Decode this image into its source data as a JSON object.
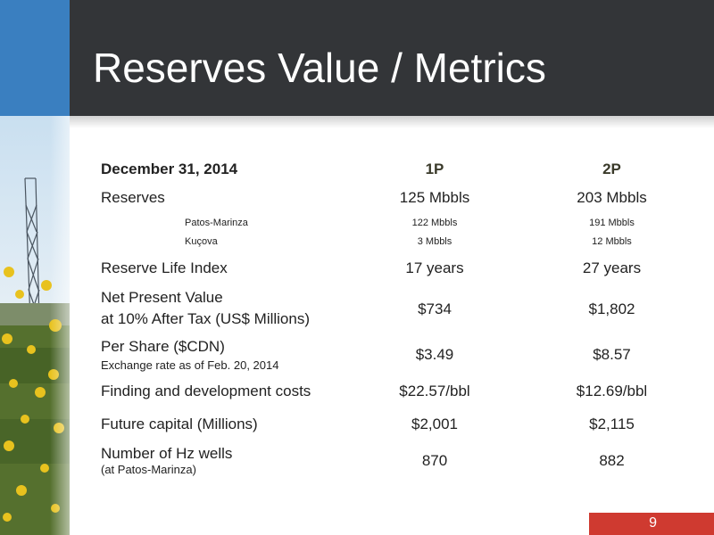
{
  "slide": {
    "title": "Reserves Value / Metrics",
    "page_number": "9"
  },
  "table": {
    "header": {
      "label": "December 31, 2014",
      "col1": "1P",
      "col2": "2P"
    },
    "rows": [
      {
        "label": "Reserves",
        "p1": "125 Mbbls",
        "p2": "203 Mbbls"
      },
      {
        "label": "Patos-Marinza",
        "p1": "122 Mbbls",
        "p2": "191 Mbbls"
      },
      {
        "label": "Kuçova",
        "p1": "3 Mbbls",
        "p2": "12 Mbbls"
      },
      {
        "label": "Reserve Life Index",
        "p1": "17 years",
        "p2": "27 years"
      },
      {
        "label": "Net Present Value",
        "label2": "at 10% After Tax (US$ Millions)",
        "p1": "$734",
        "p2": "$1,802"
      },
      {
        "label": "Per Share ($CDN)",
        "note": "Exchange rate as of Feb. 20, 2014",
        "p1": "$3.49",
        "p2": "$8.57"
      },
      {
        "label": "Finding and development costs",
        "p1": "$22.57/bbl",
        "p2": "$12.69/bbl"
      },
      {
        "label": "Future capital (Millions)",
        "p1": "$2,001",
        "p2": "$2,115"
      },
      {
        "label": "Number of Hz wells",
        "note": "(at Patos-Marinza)",
        "p1": "870",
        "p2": "882"
      }
    ]
  },
  "colors": {
    "header_bg": "#333538",
    "accent_blue": "#3a7fc0",
    "page_badge": "#cf3a30"
  }
}
